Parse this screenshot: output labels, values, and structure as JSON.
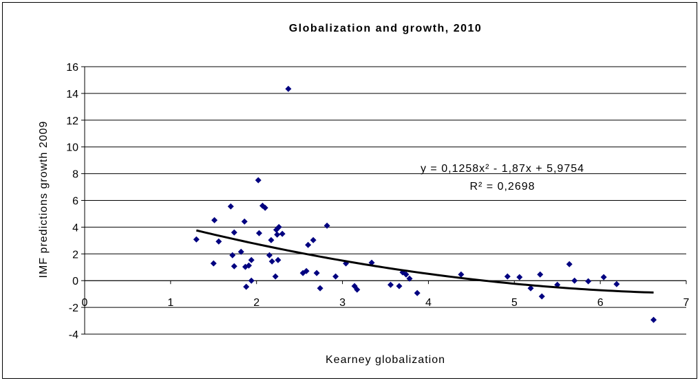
{
  "chart_data": {
    "type": "scatter",
    "title": "Globalization and growth, 2010",
    "xlabel": "Kearney globalization",
    "ylabel": "IMF predictions growth 2009",
    "xlim": [
      0,
      7
    ],
    "ylim": [
      -4,
      16
    ],
    "xticks": [
      0,
      1,
      2,
      3,
      4,
      5,
      6,
      7
    ],
    "yticks": [
      -4,
      -2,
      0,
      2,
      4,
      6,
      8,
      10,
      12,
      14,
      16
    ],
    "grid": true,
    "color": "#000080",
    "x": [
      1.3,
      1.51,
      1.5,
      1.56,
      1.7,
      1.72,
      1.74,
      1.74,
      1.82,
      1.86,
      1.87,
      1.88,
      1.91,
      1.94,
      1.94,
      2.02,
      2.03,
      2.07,
      2.1,
      2.15,
      2.17,
      2.18,
      2.23,
      2.26,
      2.24,
      2.25,
      2.22,
      2.3,
      2.37,
      2.54,
      2.58,
      2.6,
      2.66,
      2.7,
      2.74,
      2.82,
      2.92,
      3.04,
      3.14,
      3.17,
      3.34,
      3.56,
      3.66,
      3.7,
      3.74,
      3.78,
      3.87,
      4.38,
      4.92,
      5.06,
      5.19,
      5.3,
      5.32,
      5.5,
      5.64,
      5.7,
      5.86,
      6.04,
      6.19,
      6.62
    ],
    "values": [
      3.08,
      4.52,
      1.29,
      2.93,
      5.55,
      1.9,
      3.6,
      1.08,
      2.16,
      4.42,
      1.03,
      -0.46,
      1.13,
      1.54,
      0.0,
      7.51,
      3.55,
      5.6,
      5.45,
      1.9,
      3.03,
      1.44,
      3.8,
      4.01,
      3.44,
      1.54,
      0.31,
      3.5,
      14.34,
      0.57,
      0.72,
      2.67,
      3.03,
      0.57,
      -0.57,
      4.11,
      0.31,
      1.29,
      -0.41,
      -0.67,
      1.34,
      -0.31,
      -0.41,
      0.62,
      0.46,
      0.15,
      -0.93,
      0.46,
      0.31,
      0.26,
      -0.57,
      0.46,
      -1.18,
      -0.31,
      1.23,
      0.0,
      -0.05,
      0.26,
      -0.26,
      -2.93
    ],
    "trendline": {
      "coefficients": [
        0.1258,
        -1.87,
        5.9754
      ],
      "color": "#000000"
    },
    "equation": "y = 0,1258x² - 1,87x + 5,9754",
    "r_squared": "R² = 0,2698"
  }
}
